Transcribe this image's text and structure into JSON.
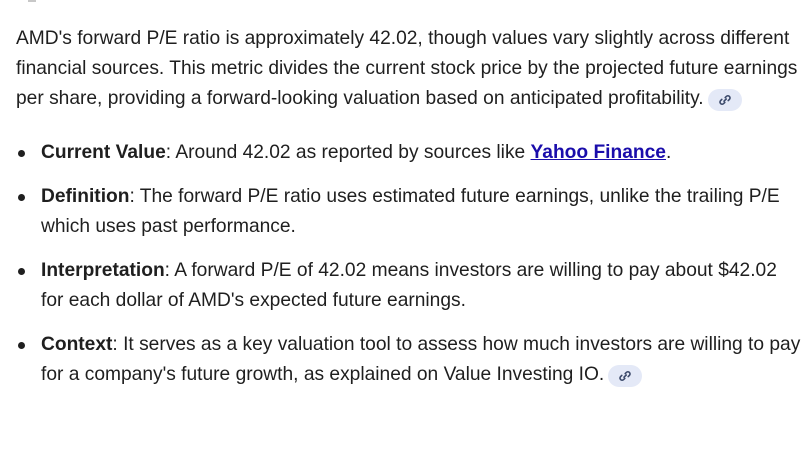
{
  "intro": {
    "text": "AMD's forward P/E ratio is approximately 42.02, though values vary slightly across different financial sources. This metric divides the current stock price by the projected future earnings per share, providing a forward-looking valuation based on anticipated profitability.",
    "chip_icon": "link-icon"
  },
  "bullets": [
    {
      "term": "Current Value",
      "text_before": ": Around 42.02 as reported by sources like ",
      "link": "Yahoo Finance",
      "text_after": "."
    },
    {
      "term": "Definition",
      "text": ": The forward P/E ratio uses estimated future earnings, unlike the trailing P/E which uses past performance."
    },
    {
      "term": "Interpretation",
      "text": ": A forward P/E of 42.02 means investors are willing to pay about $42.02 for each dollar of AMD's expected future earnings."
    },
    {
      "term": "Context",
      "text": ": It serves as a key valuation tool to assess how much investors are willing to pay for a company's future growth, as explained on Value Investing IO.",
      "chip_icon": "link-icon"
    }
  ],
  "colors": {
    "text": "#1f1f1f",
    "link": "#1a0dab",
    "chip_bg": "#e4e9f7",
    "chip_icon": "#3c4a6b"
  }
}
